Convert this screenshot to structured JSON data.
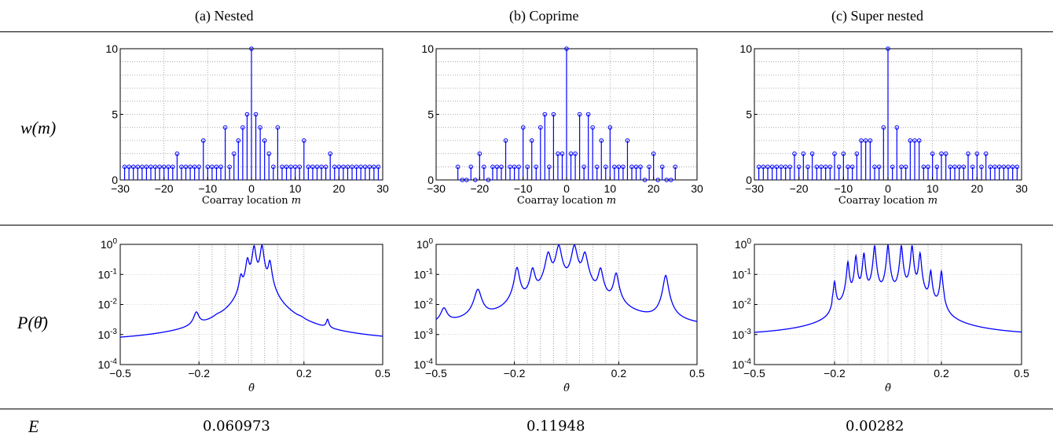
{
  "panels": [
    {
      "title": "(a) Nested"
    },
    {
      "title": "(b) Coprime"
    },
    {
      "title": "(c) Super nested"
    }
  ],
  "row_labels": {
    "weight": "w(m)",
    "spectrum": "P(θ̄)",
    "error": "E"
  },
  "errors": [
    "0.060973",
    "0.11948",
    "0.00282"
  ],
  "chart_data": [
    {
      "type": "stem",
      "panel": "(a) Nested",
      "xlabel": "Coarray location m",
      "ylabel": "w(m)",
      "xlim": [
        -30,
        30
      ],
      "ylim": [
        0,
        10
      ],
      "xticks": [
        "−30",
        "−20",
        "−10",
        "0",
        "10",
        "20",
        "30"
      ],
      "yticks": [
        "0",
        "5",
        "10"
      ],
      "x": [
        -29,
        -28,
        -27,
        -26,
        -25,
        -24,
        -23,
        -22,
        -21,
        -20,
        -19,
        -18,
        -17,
        -16,
        -15,
        -14,
        -13,
        -12,
        -11,
        -10,
        -9,
        -8,
        -7,
        -6,
        -5,
        -4,
        -3,
        -2,
        -1,
        0,
        1,
        2,
        3,
        4,
        5,
        6,
        7,
        8,
        9,
        10,
        11,
        12,
        13,
        14,
        15,
        16,
        17,
        18,
        19,
        20,
        21,
        22,
        23,
        24,
        25,
        26,
        27,
        28,
        29
      ],
      "y": [
        1,
        1,
        1,
        1,
        1,
        1,
        1,
        1,
        1,
        1,
        1,
        1,
        2,
        1,
        1,
        1,
        1,
        1,
        3,
        1,
        1,
        1,
        1,
        4,
        1,
        2,
        3,
        4,
        5,
        10,
        5,
        4,
        3,
        2,
        1,
        4,
        1,
        1,
        1,
        1,
        1,
        3,
        1,
        1,
        1,
        1,
        1,
        2,
        1,
        1,
        1,
        1,
        1,
        1,
        1,
        1,
        1,
        1,
        1
      ],
      "grid": true,
      "color": "#0000ff"
    },
    {
      "type": "stem",
      "panel": "(b) Coprime",
      "xlabel": "Coarray location m",
      "ylabel": "w(m)",
      "xlim": [
        -30,
        30
      ],
      "ylim": [
        0,
        10
      ],
      "xticks": [
        "−30",
        "−20",
        "−10",
        "0",
        "10",
        "20",
        "30"
      ],
      "yticks": [
        "0",
        "5",
        "10"
      ],
      "x": [
        -25,
        -24,
        -23,
        -22,
        -21,
        -20,
        -19,
        -18,
        -17,
        -16,
        -15,
        -14,
        -13,
        -12,
        -11,
        -10,
        -9,
        -8,
        -7,
        -6,
        -5,
        -4,
        -3,
        -2,
        -1,
        0,
        1,
        2,
        3,
        4,
        5,
        6,
        7,
        8,
        9,
        10,
        11,
        12,
        13,
        14,
        15,
        16,
        17,
        18,
        19,
        20,
        21,
        22,
        23,
        24,
        25
      ],
      "y": [
        1,
        0,
        0,
        1,
        0,
        2,
        1,
        0,
        1,
        1,
        1,
        3,
        1,
        1,
        1,
        4,
        1,
        3,
        1,
        4,
        5,
        1,
        5,
        2,
        2,
        10,
        2,
        2,
        5,
        1,
        5,
        4,
        1,
        3,
        1,
        4,
        1,
        1,
        1,
        3,
        1,
        1,
        1,
        0,
        1,
        2,
        0,
        1,
        0,
        0,
        1
      ],
      "grid": true,
      "color": "#0000ff"
    },
    {
      "type": "stem",
      "panel": "(c) Super nested",
      "xlabel": "Coarray location m",
      "ylabel": "w(m)",
      "xlim": [
        -30,
        30
      ],
      "ylim": [
        0,
        10
      ],
      "xticks": [
        "−30",
        "−20",
        "−10",
        "0",
        "10",
        "20",
        "30"
      ],
      "yticks": [
        "0",
        "5",
        "10"
      ],
      "x": [
        -29,
        -28,
        -27,
        -26,
        -25,
        -24,
        -23,
        -22,
        -21,
        -20,
        -19,
        -18,
        -17,
        -16,
        -15,
        -14,
        -13,
        -12,
        -11,
        -10,
        -9,
        -8,
        -7,
        -6,
        -5,
        -4,
        -3,
        -2,
        -1,
        0,
        1,
        2,
        3,
        4,
        5,
        6,
        7,
        8,
        9,
        10,
        11,
        12,
        13,
        14,
        15,
        16,
        17,
        18,
        19,
        20,
        21,
        22,
        23,
        24,
        25,
        26,
        27,
        28,
        29
      ],
      "y": [
        1,
        1,
        1,
        1,
        1,
        1,
        1,
        1,
        2,
        1,
        2,
        1,
        2,
        1,
        1,
        1,
        1,
        2,
        1,
        2,
        1,
        1,
        2,
        3,
        3,
        3,
        1,
        1,
        4,
        10,
        1,
        4,
        1,
        1,
        3,
        3,
        3,
        1,
        1,
        2,
        1,
        2,
        2,
        1,
        1,
        1,
        1,
        2,
        1,
        2,
        1,
        2,
        1,
        1,
        1,
        1,
        1,
        1,
        1
      ],
      "grid": true,
      "color": "#0000ff"
    },
    {
      "type": "line",
      "panel": "(a) Nested",
      "scale": "log",
      "xlabel": "θ̄",
      "ylabel": "P(θ̄)",
      "xlim": [
        -0.5,
        0.5
      ],
      "ylim": [
        0.0001,
        1
      ],
      "xticks": [
        "−0.5",
        "−0.2",
        "0.2",
        "0.5"
      ],
      "yticks": [
        "10^0",
        "10^-1",
        "10^-2",
        "10^-3",
        "10^-4"
      ],
      "baseline": 0.0005,
      "peaks": [
        {
          "x": -0.21,
          "y": 0.0035,
          "w": 0.01
        },
        {
          "x": -0.13,
          "y": 0.0004,
          "w": 0.015
        },
        {
          "x": -0.04,
          "y": 0.07,
          "w": 0.006
        },
        {
          "x": -0.015,
          "y": 0.3,
          "w": 0.006
        },
        {
          "x": 0.01,
          "y": 0.85,
          "w": 0.006
        },
        {
          "x": 0.04,
          "y": 0.9,
          "w": 0.006
        },
        {
          "x": 0.07,
          "y": 0.25,
          "w": 0.006
        },
        {
          "x": 0.19,
          "y": 0.00025,
          "w": 0.012
        },
        {
          "x": 0.29,
          "y": 0.0015,
          "w": 0.005
        }
      ],
      "vgrid": [
        -0.2,
        -0.15,
        -0.1,
        -0.05,
        0,
        0.05,
        0.1,
        0.15,
        0.2
      ],
      "color": "#0000ff"
    },
    {
      "type": "line",
      "panel": "(b) Coprime",
      "scale": "log",
      "xlabel": "θ̄",
      "ylabel": "P(θ̄)",
      "xlim": [
        -0.5,
        0.5
      ],
      "ylim": [
        0.0001,
        1
      ],
      "xticks": [
        "−0.5",
        "−0.2",
        "0.2",
        "0.5"
      ],
      "yticks": [
        "10^0",
        "10^-1",
        "10^-2",
        "10^-3",
        "10^-4"
      ],
      "baseline": 0.0012,
      "peaks": [
        {
          "x": -0.47,
          "y": 0.005,
          "w": 0.012
        },
        {
          "x": -0.34,
          "y": 0.028,
          "w": 0.012
        },
        {
          "x": -0.19,
          "y": 0.16,
          "w": 0.008
        },
        {
          "x": -0.13,
          "y": 0.14,
          "w": 0.008
        },
        {
          "x": -0.07,
          "y": 0.5,
          "w": 0.009
        },
        {
          "x": -0.03,
          "y": 0.9,
          "w": 0.009
        },
        {
          "x": 0.03,
          "y": 0.9,
          "w": 0.009
        },
        {
          "x": 0.07,
          "y": 0.5,
          "w": 0.009
        },
        {
          "x": 0.13,
          "y": 0.14,
          "w": 0.008
        },
        {
          "x": 0.19,
          "y": 0.1,
          "w": 0.008
        },
        {
          "x": 0.38,
          "y": 0.09,
          "w": 0.008
        }
      ],
      "vgrid": [
        -0.2,
        -0.15,
        -0.1,
        -0.05,
        0,
        0.05,
        0.1,
        0.15,
        0.2
      ],
      "color": "#0000ff"
    },
    {
      "type": "line",
      "panel": "(c) Super nested",
      "scale": "log",
      "xlabel": "θ̄",
      "ylabel": "P(θ̄)",
      "xlim": [
        -0.5,
        0.5
      ],
      "ylim": [
        0.0001,
        1
      ],
      "xticks": [
        "−0.5",
        "−0.2",
        "0.2",
        "0.5"
      ],
      "yticks": [
        "10^0",
        "10^-1",
        "10^-2",
        "10^-3",
        "10^-4"
      ],
      "baseline": 0.0008,
      "peaks": [
        {
          "x": -0.2,
          "y": 0.05,
          "w": 0.004
        },
        {
          "x": -0.15,
          "y": 0.25,
          "w": 0.004
        },
        {
          "x": -0.12,
          "y": 0.4,
          "w": 0.004
        },
        {
          "x": -0.09,
          "y": 0.5,
          "w": 0.004
        },
        {
          "x": -0.05,
          "y": 0.9,
          "w": 0.004
        },
        {
          "x": 0.0,
          "y": 0.95,
          "w": 0.004
        },
        {
          "x": 0.05,
          "y": 0.9,
          "w": 0.004
        },
        {
          "x": 0.09,
          "y": 0.9,
          "w": 0.004
        },
        {
          "x": 0.12,
          "y": 0.5,
          "w": 0.004
        },
        {
          "x": 0.16,
          "y": 0.12,
          "w": 0.004
        },
        {
          "x": 0.2,
          "y": 0.12,
          "w": 0.004
        }
      ],
      "band": [
        -0.21,
        0.21
      ],
      "bandfloor": 0.004,
      "vgrid": [
        -0.2,
        -0.15,
        -0.1,
        -0.05,
        0,
        0.05,
        0.1,
        0.15,
        0.2
      ],
      "color": "#0000ff"
    }
  ]
}
